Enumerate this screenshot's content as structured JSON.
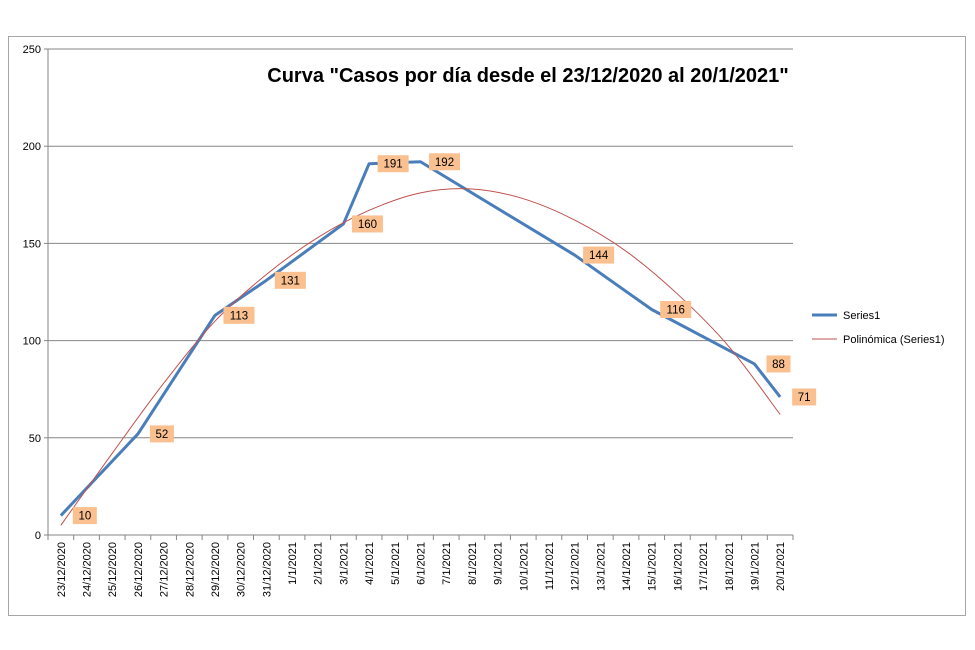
{
  "chart_data": {
    "type": "line",
    "title": "Curva \"Casos por día desde el 23/12/2020  al 20/1/2021\"",
    "categories": [
      "23/12/2020",
      "24/12/2020",
      "25/12/2020",
      "26/12/2020",
      "27/12/2020",
      "28/12/2020",
      "29/12/2020",
      "30/12/2020",
      "31/12/2020",
      "1/1/2021",
      "2/1/2021",
      "3/1/2021",
      "4/1/2021",
      "5/1/2021",
      "6/1/2021",
      "7/1/2021",
      "8/1/2021",
      "9/1/2021",
      "10/1/2021",
      "11/1/2021",
      "12/1/2021",
      "13/1/2021",
      "14/1/2021",
      "15/1/2021",
      "16/1/2021",
      "17/1/2021",
      "18/1/2021",
      "19/1/2021",
      "20/1/2021"
    ],
    "y_ticks": [
      "0",
      "50",
      "100",
      "150",
      "200",
      "250"
    ],
    "ylim": [
      0,
      250
    ],
    "grid": "horizontal",
    "legend_position": "right",
    "series": [
      {
        "name": "Series1",
        "color": "#4a7ebb",
        "points": [
          {
            "x": "23/12/2020",
            "y": 10,
            "label": "10"
          },
          {
            "x": "26/12/2020",
            "y": 52,
            "label": "52"
          },
          {
            "x": "29/12/2020",
            "y": 113,
            "label": "113"
          },
          {
            "x": "31/12/2020",
            "y": 131,
            "label": "131"
          },
          {
            "x": "3/1/2021",
            "y": 160,
            "label": "160"
          },
          {
            "x": "4/1/2021",
            "y": 191,
            "label": "191"
          },
          {
            "x": "6/1/2021",
            "y": 192,
            "label": "192"
          },
          {
            "x": "12/1/2021",
            "y": 144,
            "label": "144"
          },
          {
            "x": "15/1/2021",
            "y": 116,
            "label": "116"
          },
          {
            "x": "19/1/2021",
            "y": 88,
            "label": "88"
          },
          {
            "x": "20/1/2021",
            "y": 71,
            "label": "71"
          }
        ]
      },
      {
        "name": "Polinómica (Series1)",
        "color": "#c0504d",
        "kind": "trendline-polynomial",
        "points": [
          {
            "x": "23/12/2020",
            "y": 5
          },
          {
            "x": "25/12/2020",
            "y": 42
          },
          {
            "x": "27/12/2020",
            "y": 78
          },
          {
            "x": "29/12/2020",
            "y": 110
          },
          {
            "x": "31/12/2020",
            "y": 134
          },
          {
            "x": "2/1/2021",
            "y": 153
          },
          {
            "x": "4/1/2021",
            "y": 167
          },
          {
            "x": "6/1/2021",
            "y": 176
          },
          {
            "x": "8/1/2021",
            "y": 178
          },
          {
            "x": "10/1/2021",
            "y": 173
          },
          {
            "x": "12/1/2021",
            "y": 162
          },
          {
            "x": "14/1/2021",
            "y": 146
          },
          {
            "x": "16/1/2021",
            "y": 124
          },
          {
            "x": "18/1/2021",
            "y": 97
          },
          {
            "x": "20/1/2021",
            "y": 62
          }
        ]
      }
    ],
    "label_box_color": "#fac090"
  }
}
